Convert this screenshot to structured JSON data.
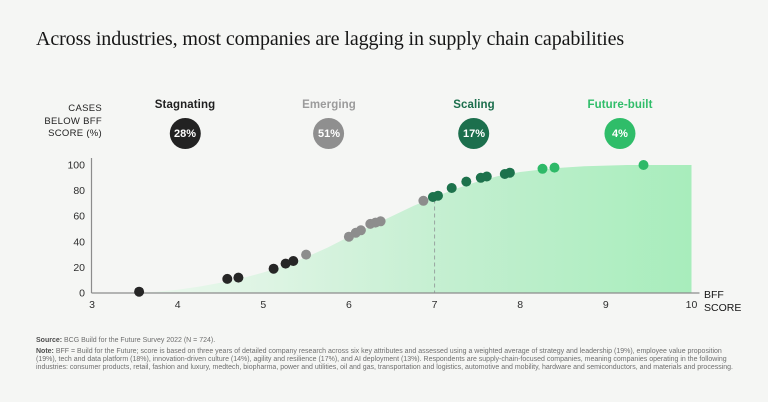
{
  "title": "Across industries, most companies are lagging in supply chain capabilities",
  "y_axis": {
    "lines": [
      "CASES",
      "BELOW BFF",
      "SCORE (%)"
    ]
  },
  "x_axis": {
    "lines": [
      "BFF",
      "SCORE"
    ]
  },
  "categories": [
    {
      "name": "Stagnating",
      "pct": "28%",
      "badge_color": "#222222",
      "label_color": "#1f1f1f"
    },
    {
      "name": "Emerging",
      "pct": "51%",
      "badge_color": "#8f8f8f",
      "label_color": "#9b9b9b"
    },
    {
      "name": "Scaling",
      "pct": "17%",
      "badge_color": "#1c6f4d",
      "label_color": "#1b6e4c"
    },
    {
      "name": "Future-built",
      "pct": "4%",
      "badge_color": "#2fbd69",
      "label_color": "#2fbd69"
    }
  ],
  "chart_data": {
    "type": "scatter",
    "title": "Across industries, most companies are lagging in supply chain capabilities",
    "xlabel": "BFF SCORE",
    "ylabel": "CASES BELOW BFF SCORE (%)",
    "xlim": [
      3,
      10
    ],
    "ylim": [
      0,
      100
    ],
    "x_ticks": [
      3,
      4,
      5,
      6,
      7,
      8,
      9,
      10
    ],
    "y_ticks": [
      0,
      20,
      40,
      60,
      80,
      100
    ],
    "grid": false,
    "legend_position": "top",
    "dashed_line_x": 7,
    "axis_color": "#8c8c8c",
    "dashed_line_color": "#9aa5a0",
    "area_gradient": [
      {
        "offset": "0%",
        "color": "#f0faf1"
      },
      {
        "offset": "30%",
        "color": "#ddf4e3"
      },
      {
        "offset": "60%",
        "color": "#c3efd0"
      },
      {
        "offset": "100%",
        "color": "#a8edbc"
      }
    ],
    "curve": [
      [
        3.5,
        0
      ],
      [
        3.75,
        1
      ],
      [
        4,
        2.5
      ],
      [
        4.25,
        5
      ],
      [
        4.5,
        8
      ],
      [
        4.75,
        11.5
      ],
      [
        5,
        16
      ],
      [
        5.25,
        21.5
      ],
      [
        5.5,
        28
      ],
      [
        5.75,
        35.5
      ],
      [
        6,
        44
      ],
      [
        6.25,
        52
      ],
      [
        6.5,
        60
      ],
      [
        6.75,
        68
      ],
      [
        7,
        75
      ],
      [
        7.25,
        81.5
      ],
      [
        7.5,
        87
      ],
      [
        7.75,
        91.5
      ],
      [
        8,
        94.5
      ],
      [
        8.25,
        96.5
      ],
      [
        8.5,
        98
      ],
      [
        8.75,
        99
      ],
      [
        9,
        99.5
      ],
      [
        9.25,
        100
      ],
      [
        10,
        100
      ]
    ],
    "series": [
      {
        "name": "Stagnating",
        "color": "#262626",
        "points": [
          [
            3.55,
            1
          ],
          [
            4.58,
            11
          ],
          [
            4.71,
            12
          ],
          [
            5.12,
            19
          ],
          [
            5.26,
            23
          ],
          [
            5.35,
            25
          ]
        ]
      },
      {
        "name": "Emerging",
        "color": "#8d8d8d",
        "points": [
          [
            5.5,
            30
          ],
          [
            6.0,
            44
          ],
          [
            6.08,
            47
          ],
          [
            6.14,
            49
          ],
          [
            6.25,
            54
          ],
          [
            6.31,
            55
          ],
          [
            6.37,
            56
          ],
          [
            6.87,
            72
          ]
        ]
      },
      {
        "name": "Scaling",
        "color": "#1d724c",
        "points": [
          [
            6.98,
            75
          ],
          [
            7.04,
            76
          ],
          [
            7.2,
            82
          ],
          [
            7.37,
            87
          ],
          [
            7.54,
            90
          ],
          [
            7.61,
            91
          ],
          [
            7.82,
            93
          ],
          [
            7.88,
            94
          ]
        ]
      },
      {
        "name": "Future-built",
        "color": "#2eb968",
        "points": [
          [
            8.26,
            97
          ],
          [
            8.4,
            98
          ],
          [
            9.44,
            100
          ]
        ]
      }
    ]
  },
  "footnotes": {
    "source_label": "Source:",
    "source_text": " BCG Build for the Future Survey 2022 (N = 724).",
    "note_label": "Note:",
    "note_text": " BFF = Build for the Future; score is based on three years of detailed company research across six key attributes and assessed using a weighted average of strategy and leadership (19%), employee value proposition (19%), tech and data platform (18%), innovation-driven culture (14%), agility and resilience (17%), and AI deployment (13%). Respondents are supply-chain-focused companies, meaning companies operating in the following industries: consumer products, retail, fashion and luxury, medtech, biopharma, power and utilities, oil and gas, transportation and logistics, automotive and mobility, hardware and semiconductors, and materials and processing."
  }
}
